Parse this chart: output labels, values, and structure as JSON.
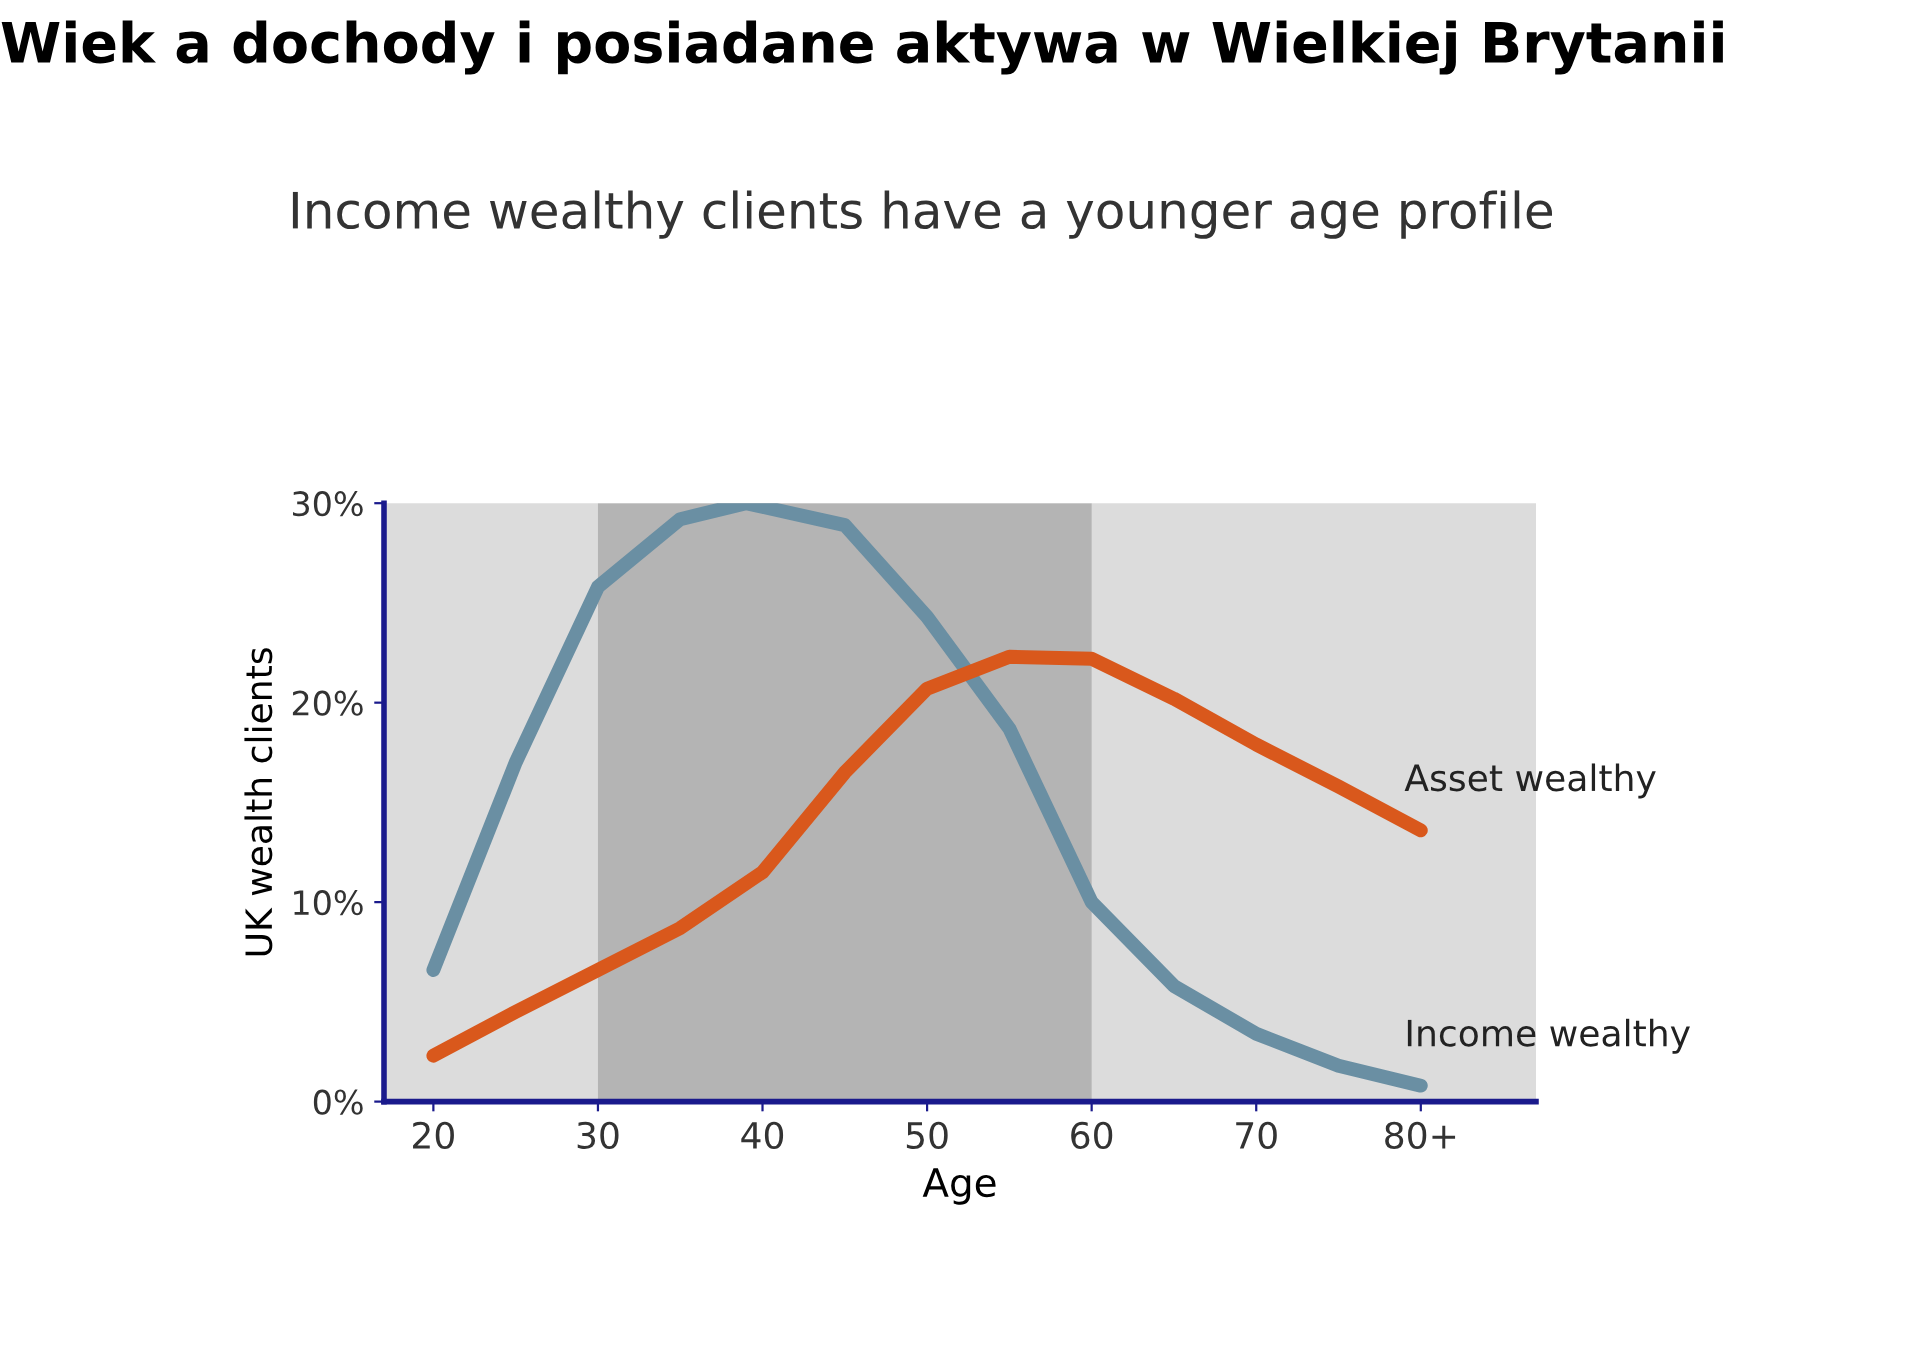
{
  "chart_data": {
    "type": "line",
    "title": "Wiek a dochody i posiadane aktywa w Wielkiej Brytanii",
    "subtitle": "Income wealthy clients have a younger age profile",
    "xlabel": "Age",
    "ylabel": "UK wealth clients",
    "series": [
      {
        "name": "Income wealthy",
        "color": "#6a8fa3",
        "x": [
          20,
          25,
          30,
          35,
          39,
          45,
          50,
          55,
          60,
          65,
          70,
          75,
          80
        ],
        "values": [
          6.6,
          17,
          25.8,
          29.2,
          30,
          28.9,
          24.3,
          18.7,
          10,
          5.8,
          3.4,
          1.8,
          0.8
        ]
      },
      {
        "name": "Asset wealthy",
        "color": "#d9581c",
        "x": [
          20,
          25,
          30,
          35,
          40,
          45,
          50,
          55,
          60,
          65,
          70,
          75,
          80
        ],
        "values": [
          2.3,
          4.5,
          6.6,
          8.7,
          11.5,
          16.5,
          20.7,
          22.3,
          22.2,
          20.2,
          17.9,
          15.8,
          13.6
        ]
      }
    ],
    "xlim": [
      17,
      87
    ],
    "xticks": [
      20,
      30,
      40,
      50,
      60,
      70,
      {
        "value": 80,
        "label": "80+"
      }
    ],
    "ylim": [
      0,
      30
    ],
    "yticks": [
      {
        "value": 0,
        "label": "0%"
      },
      {
        "value": 10,
        "label": "10%"
      },
      {
        "value": 20,
        "label": "20%"
      },
      {
        "value": 30,
        "label": "30%"
      }
    ],
    "bands": [
      {
        "axis": "x",
        "from": 30,
        "to": 60,
        "color": "#b4b4b4"
      }
    ],
    "grid": false,
    "legend": false,
    "marker": "none",
    "line_style": "solid"
  }
}
